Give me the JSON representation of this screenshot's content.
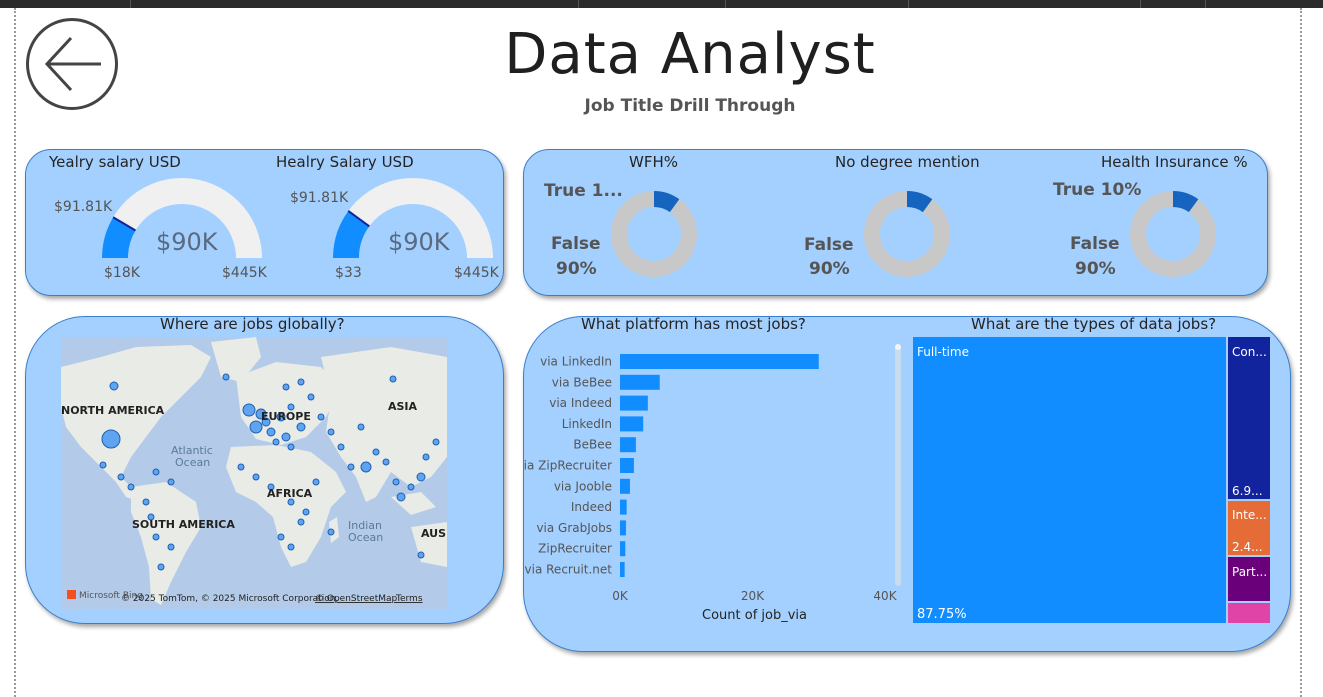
{
  "header": {
    "title": "Data Analyst",
    "subtitle": "Job Title Drill Through"
  },
  "gauges": [
    {
      "title": "Yealry salary USD",
      "value": "$90K",
      "target": "$91.81K",
      "min": "$18K",
      "max": "$445K",
      "fill_fraction": 0.17,
      "target_fraction": 0.17
    },
    {
      "title": "Healry Salary USD",
      "value": "$90K",
      "target": "$91.81K",
      "min": "$33",
      "max": "$445K",
      "fill_fraction": 0.2,
      "target_fraction": 0.2
    }
  ],
  "donuts": [
    {
      "title": "WFH%",
      "true_label": "True 1...",
      "false_label": "False",
      "false_pct": "90%",
      "true_value": 10,
      "false_value": 90
    },
    {
      "title": "No degree mention",
      "true_label": "",
      "false_label": "False",
      "false_pct": "90%",
      "true_value": 10,
      "false_value": 90
    },
    {
      "title": "Health Insurance %",
      "true_label": "True 10%",
      "false_label": "False",
      "false_pct": "90%",
      "true_value": 10,
      "false_value": 90
    }
  ],
  "map": {
    "title": "Where are jobs globally?",
    "labels": {
      "north_america": "NORTH AMERICA",
      "europe": "EUROPE",
      "asia": "ASIA",
      "africa": "AFRICA",
      "south_america": "SOUTH AMERICA",
      "atlantic": "Atlantic",
      "ocean": "Ocean",
      "indian": "Indian",
      "indian_ocean": "Ocean",
      "aus": "AUS"
    },
    "attribution_brand": "Microsoft Bing",
    "attribution": "© 2025 TomTom, © 2025 Microsoft Corporation,",
    "osm_link": "© OpenStreetMap",
    "terms_link": "Terms"
  },
  "platform_chart": {
    "title": "What platform has most jobs?",
    "x_title": "Count of job_via",
    "x_ticks": [
      "0K",
      "20K",
      "40K"
    ]
  },
  "types_chart": {
    "title": "What are the types of data jobs?",
    "labels": {
      "fulltime": "Full-time",
      "fulltime_pct": "87.75%",
      "contractor": "Con...",
      "contractor_pct": "6.9...",
      "internship": "Inte...",
      "internship_pct": "2.4...",
      "parttime": "Part..."
    }
  },
  "chart_data": [
    {
      "type": "bar",
      "title": "What platform has most jobs?",
      "orientation": "horizontal",
      "categories": [
        "via LinkedIn",
        "via BeBee",
        "via Indeed",
        "LinkedIn",
        "BeBee",
        "via ZipRecruiter",
        "via Jooble",
        "Indeed",
        "via GrabJobs",
        "ZipRecruiter",
        "via Recruit.net"
      ],
      "values": [
        30000,
        6000,
        4200,
        3500,
        2400,
        2100,
        1500,
        1000,
        900,
        800,
        700
      ],
      "xlabel": "Count of job_via",
      "ylabel": "",
      "xlim": [
        0,
        40000
      ],
      "color": "#118dff"
    },
    {
      "type": "treemap",
      "title": "What are the types of data jobs?",
      "categories": [
        "Full-time",
        "Con...",
        "Inte...",
        "Part...",
        ""
      ],
      "values": [
        87.75,
        6.9,
        2.4,
        1.7,
        1.25
      ],
      "colors": [
        "#118dff",
        "#12239e",
        "#e66c37",
        "#6b007b",
        "#e044a7"
      ]
    }
  ]
}
